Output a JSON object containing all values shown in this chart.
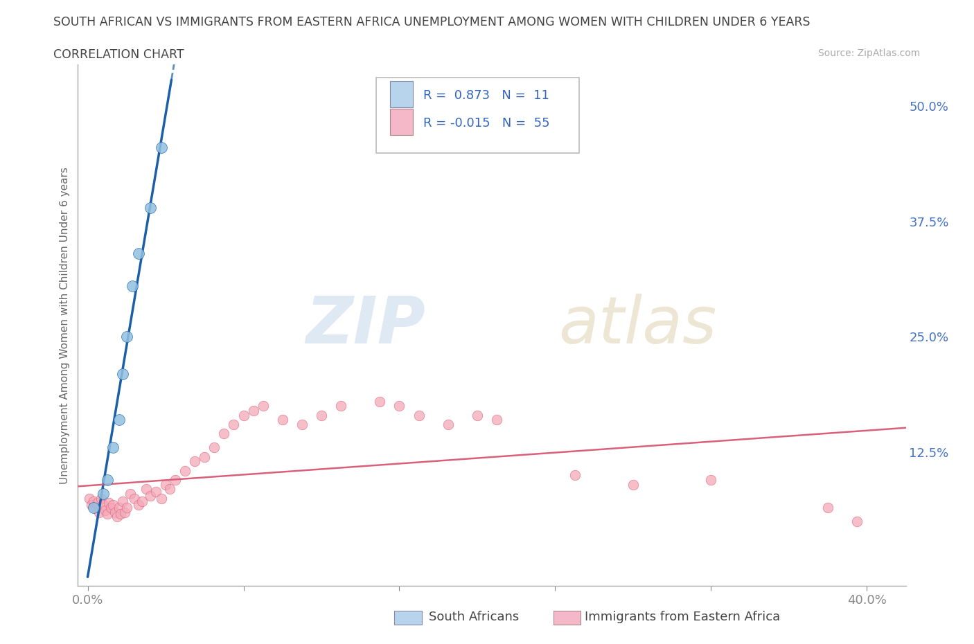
{
  "title": "SOUTH AFRICAN VS IMMIGRANTS FROM EASTERN AFRICA UNEMPLOYMENT AMONG WOMEN WITH CHILDREN UNDER 6 YEARS",
  "subtitle": "CORRELATION CHART",
  "source": "Source: ZipAtlas.com",
  "ylabel": "Unemployment Among Women with Children Under 6 years",
  "xlim": [
    -0.005,
    0.42
  ],
  "ylim": [
    -0.02,
    0.545
  ],
  "blue_color": "#92c0e0",
  "blue_line_color": "#1a5fa8",
  "pink_color": "#f4a8b8",
  "pink_line_color": "#d9607a",
  "blue_R": 0.873,
  "blue_N": 11,
  "pink_R": -0.015,
  "pink_N": 55,
  "watermark_zip": "ZIP",
  "watermark_atlas": "atlas",
  "background_color": "#ffffff",
  "grid_color": "#d8d8d8",
  "title_color": "#555555",
  "legend_box_color_blue": "#b8d4ed",
  "legend_box_color_pink": "#f4b8c8",
  "blue_x": [
    0.003,
    0.008,
    0.01,
    0.013,
    0.016,
    0.018,
    0.02,
    0.023,
    0.026,
    0.032,
    0.038
  ],
  "blue_y": [
    0.065,
    0.08,
    0.095,
    0.13,
    0.16,
    0.21,
    0.25,
    0.305,
    0.34,
    0.39,
    0.455
  ],
  "pink_x": [
    0.001,
    0.002,
    0.003,
    0.004,
    0.005,
    0.006,
    0.007,
    0.008,
    0.009,
    0.01,
    0.011,
    0.012,
    0.013,
    0.014,
    0.015,
    0.016,
    0.017,
    0.018,
    0.019,
    0.02,
    0.022,
    0.024,
    0.026,
    0.028,
    0.03,
    0.032,
    0.035,
    0.038,
    0.04,
    0.042,
    0.045,
    0.05,
    0.055,
    0.06,
    0.065,
    0.07,
    0.075,
    0.08,
    0.085,
    0.09,
    0.1,
    0.11,
    0.12,
    0.13,
    0.15,
    0.16,
    0.17,
    0.185,
    0.2,
    0.21,
    0.25,
    0.28,
    0.32,
    0.38,
    0.395
  ],
  "pink_y": [
    0.075,
    0.068,
    0.072,
    0.065,
    0.07,
    0.06,
    0.075,
    0.068,
    0.062,
    0.058,
    0.07,
    0.065,
    0.068,
    0.06,
    0.055,
    0.065,
    0.058,
    0.072,
    0.06,
    0.065,
    0.08,
    0.075,
    0.068,
    0.072,
    0.085,
    0.078,
    0.082,
    0.075,
    0.09,
    0.085,
    0.095,
    0.105,
    0.115,
    0.12,
    0.13,
    0.145,
    0.155,
    0.165,
    0.17,
    0.175,
    0.16,
    0.155,
    0.165,
    0.175,
    0.18,
    0.175,
    0.165,
    0.155,
    0.165,
    0.16,
    0.1,
    0.09,
    0.095,
    0.065,
    0.05
  ]
}
